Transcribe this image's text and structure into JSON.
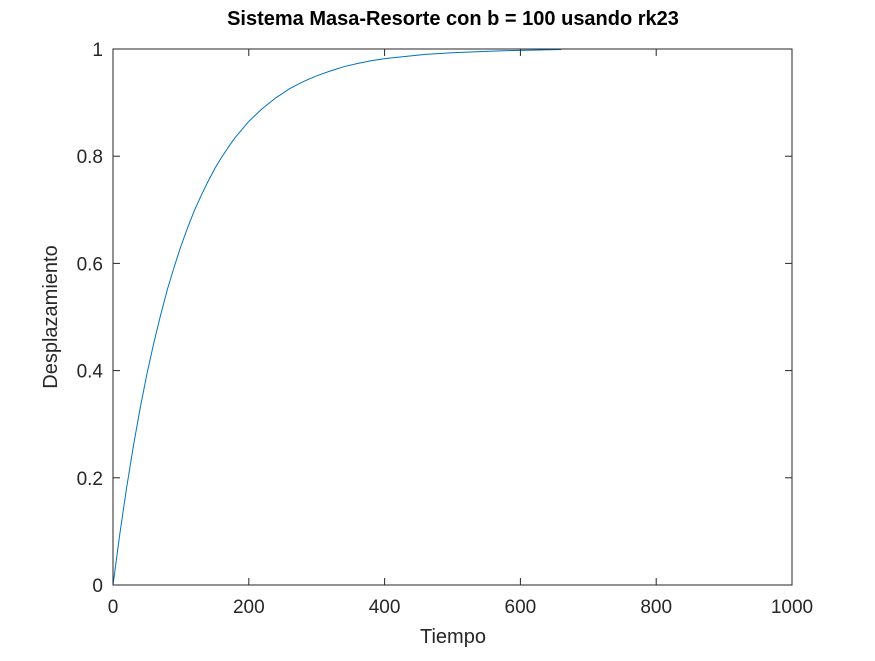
{
  "chart_data": {
    "type": "line",
    "title": "Sistema Masa-Resorte con b = 100 usando rk23",
    "xlabel": "Tiempo",
    "ylabel": "Desplazamiento",
    "xlim": [
      0,
      1000
    ],
    "ylim": [
      0,
      1
    ],
    "xticks": [
      0,
      200,
      400,
      600,
      800,
      1000
    ],
    "xtick_labels": [
      "0",
      "200",
      "400",
      "600",
      "800",
      "1000"
    ],
    "yticks": [
      0,
      0.2,
      0.4,
      0.6,
      0.8,
      1
    ],
    "ytick_labels": [
      "0",
      "0.2",
      "0.4",
      "0.6",
      "0.8",
      "1"
    ],
    "grid": false,
    "legend": "none",
    "colors": {
      "series": "#0072bd",
      "axes": "#262626",
      "background": "#ffffff"
    },
    "series": [
      {
        "x": [
          0,
          10,
          20,
          30,
          40,
          50,
          60,
          70,
          80,
          90,
          100,
          110,
          120,
          130,
          140,
          150,
          160,
          170,
          180,
          190,
          200,
          220,
          240,
          260,
          280,
          300,
          320,
          340,
          360,
          380,
          400,
          430,
          460,
          500,
          540,
          580,
          620,
          660
        ],
        "y": [
          0,
          0.095,
          0.181,
          0.259,
          0.33,
          0.394,
          0.451,
          0.503,
          0.551,
          0.593,
          0.632,
          0.667,
          0.699,
          0.727,
          0.753,
          0.777,
          0.798,
          0.817,
          0.835,
          0.85,
          0.865,
          0.889,
          0.909,
          0.926,
          0.939,
          0.95,
          0.959,
          0.967,
          0.973,
          0.978,
          0.982,
          0.986,
          0.99,
          0.993,
          0.995,
          0.997,
          0.998,
          0.999
        ]
      }
    ]
  }
}
